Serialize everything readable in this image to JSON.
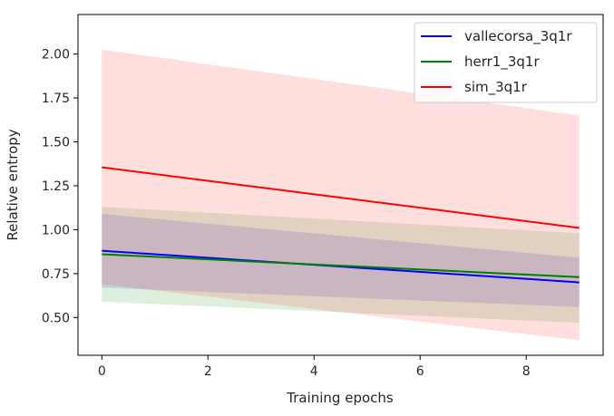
{
  "chart_data": {
    "type": "line",
    "title": "",
    "xlabel": "Training epochs",
    "ylabel": "Relative entropy",
    "xlim": [
      -0.45,
      9.45
    ],
    "ylim": [
      0.285,
      2.225
    ],
    "x_ticks": [
      0,
      2,
      4,
      6,
      8
    ],
    "y_ticks": [
      0.5,
      0.75,
      1.0,
      1.25,
      1.5,
      1.75,
      2.0
    ],
    "x_tick_labels": [
      "0",
      "2",
      "4",
      "6",
      "8"
    ],
    "y_tick_labels": [
      "0.50",
      "0.75",
      "1.00",
      "1.25",
      "1.50",
      "1.75",
      "2.00"
    ],
    "grid": false,
    "legend_position": "top-right",
    "series": [
      {
        "name": "vallecorsa_3q1r",
        "color": "#0000ff",
        "x": [
          0,
          9
        ],
        "y": [
          0.88,
          0.7
        ],
        "band_lower": [
          0.67,
          0.56
        ],
        "band_upper": [
          1.09,
          0.84
        ]
      },
      {
        "name": "herr1_3q1r",
        "color": "#008000",
        "x": [
          0,
          9
        ],
        "y": [
          0.86,
          0.73
        ],
        "band_lower": [
          0.59,
          0.47
        ],
        "band_upper": [
          1.13,
          0.98
        ]
      },
      {
        "name": "sim_3q1r",
        "color": "#ff0000",
        "x": [
          0,
          9
        ],
        "y": [
          1.355,
          1.01
        ],
        "band_lower": [
          0.69,
          0.37
        ],
        "band_upper": [
          2.025,
          1.65
        ]
      }
    ]
  }
}
